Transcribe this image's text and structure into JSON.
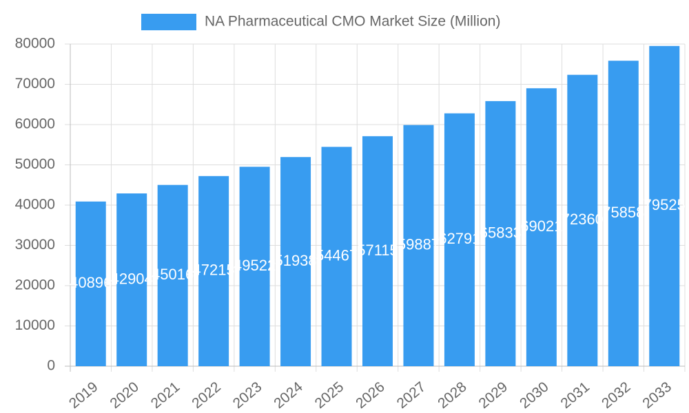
{
  "chart_data": {
    "type": "bar",
    "legend": "NA Pharmaceutical CMO Market Size (Million)",
    "categories": [
      "2019",
      "2020",
      "2021",
      "2022",
      "2023",
      "2024",
      "2025",
      "2026",
      "2027",
      "2028",
      "2029",
      "2030",
      "2031",
      "2032",
      "2033"
    ],
    "values": [
      40896,
      42904,
      45016,
      47215,
      49522,
      51938,
      54467,
      57115,
      59887,
      62791,
      65833,
      69021,
      72360,
      75858,
      79525
    ],
    "color": "#389cf0",
    "ylim": [
      0,
      80000
    ],
    "yticks": [
      0,
      10000,
      20000,
      30000,
      40000,
      50000,
      60000,
      70000,
      80000
    ],
    "grid": true
  }
}
